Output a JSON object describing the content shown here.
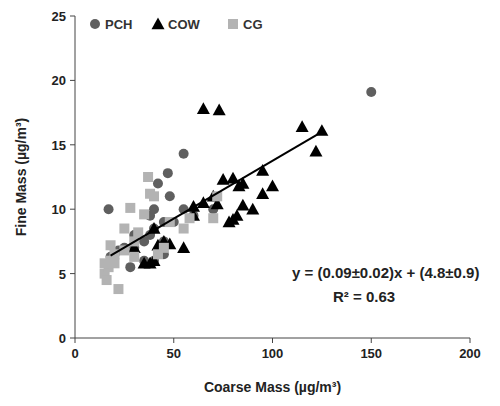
{
  "chart_data": {
    "type": "scatter",
    "x_label": "Coarse Mass (µg/m³)",
    "y_label": "Fine Mass (µg/m³)",
    "xlim": [
      0,
      200
    ],
    "ylim": [
      0,
      25
    ],
    "xticks": [
      0,
      50,
      100,
      150,
      200
    ],
    "yticks": [
      0,
      5,
      10,
      15,
      20,
      25
    ],
    "grid": false,
    "legend": "top-left",
    "series": [
      {
        "name": "PCH",
        "color": "#5f5f5f",
        "marker": "circle",
        "x": [
          150,
          17,
          20,
          18,
          25,
          30,
          35,
          38,
          40,
          42,
          45,
          45,
          40,
          48,
          47,
          55,
          50,
          60,
          35,
          28,
          22,
          30,
          40,
          45,
          55,
          70,
          38
        ],
        "values": [
          19.1,
          10,
          6.5,
          6.3,
          7,
          8,
          6,
          9.5,
          10,
          12,
          9,
          7.5,
          8.5,
          11,
          12.8,
          14.3,
          9,
          9.5,
          7.5,
          5.5,
          6.8,
          7,
          6,
          6.5,
          10,
          10,
          8
        ]
      },
      {
        "name": "COW",
        "color": "#000000",
        "marker": "triangle",
        "x": [
          65,
          73,
          115,
          125,
          122,
          100,
          95,
          85,
          90,
          80,
          82,
          83,
          85,
          80,
          75,
          95,
          70,
          65,
          60,
          60,
          55,
          48,
          45,
          42,
          40,
          35,
          30,
          40,
          38,
          72,
          78
        ],
        "values": [
          17.8,
          17.7,
          16.4,
          16.1,
          14.5,
          11.8,
          11.2,
          10.3,
          10,
          9.2,
          9.5,
          11.8,
          12,
          12.4,
          12.3,
          13,
          11,
          10.5,
          10.2,
          9.5,
          7,
          7.3,
          7.5,
          7.2,
          6,
          5.8,
          7,
          8.5,
          5.8,
          10.4,
          9
        ]
      },
      {
        "name": "CG",
        "color": "#b3b3b3",
        "marker": "square",
        "x": [
          15,
          16,
          17,
          18,
          20,
          22,
          25,
          28,
          30,
          35,
          37,
          38,
          32,
          40,
          45,
          48,
          55,
          58,
          70,
          72,
          20,
          25,
          42,
          15,
          30,
          18
        ],
        "values": [
          5,
          4.5,
          5.5,
          6,
          5.8,
          3.8,
          8.5,
          10.1,
          7.5,
          9.6,
          12.5,
          11.2,
          8.2,
          11,
          7,
          9,
          8.5,
          9.3,
          9.3,
          11,
          6.5,
          6.8,
          6.5,
          5.8,
          6.3,
          7.2
        ]
      }
    ],
    "fit_line": {
      "x": [
        18,
        125
      ],
      "values": [
        6.4,
        16.0
      ],
      "color": "#000000",
      "line_style": "solid"
    },
    "annotations": [
      "y = (0.09±0.02)x  + (4.8±0.9)",
      "R² = 0.63"
    ]
  }
}
